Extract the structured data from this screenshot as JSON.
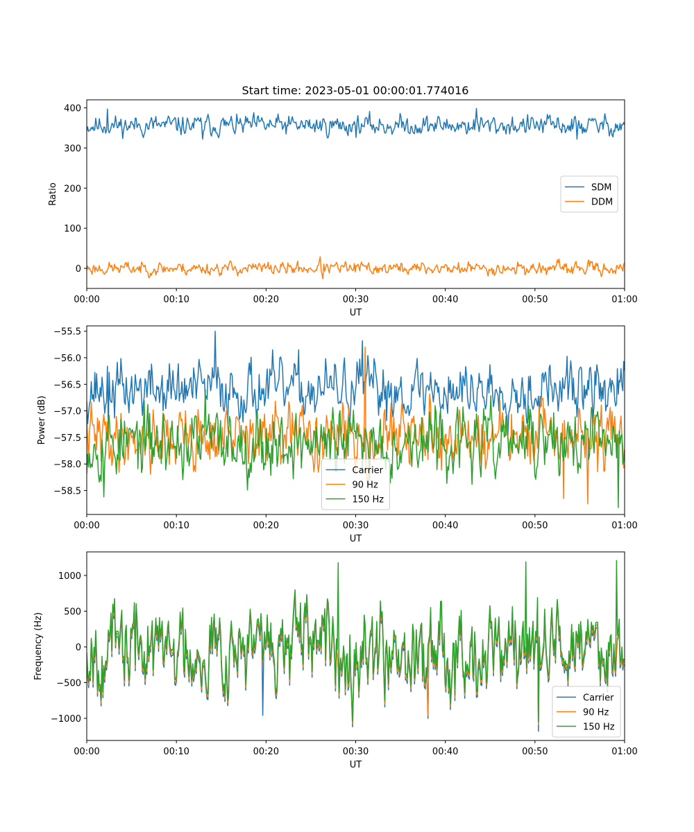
{
  "figure": {
    "title": "Start time: 2023-05-01 00:00:01.774016"
  },
  "chart_data": [
    {
      "type": "line",
      "title": "Start time: 2023-05-01 00:00:01.774016",
      "xlabel": "UT",
      "ylabel": "Ratio",
      "xlim": [
        0,
        60
      ],
      "ylim": [
        -50,
        420
      ],
      "xticks": [
        0,
        10,
        20,
        30,
        40,
        50,
        60
      ],
      "xtick_labels": [
        "00:00",
        "00:10",
        "00:20",
        "00:30",
        "00:40",
        "00:50",
        "01:00"
      ],
      "yticks": [
        0,
        100,
        200,
        300,
        400
      ],
      "ytick_labels": [
        "0",
        "100",
        "200",
        "300",
        "400"
      ],
      "grid": false,
      "legend_position": "center-right",
      "series": [
        {
          "name": "SDM",
          "color": "#1f77b4",
          "noise": {
            "points": 600,
            "mean": 356,
            "amplitude": 14,
            "seed": 11,
            "extremes": [
              [
                2.3,
                397
              ],
              [
                43.5,
                399
              ],
              [
                12.9,
                322
              ],
              [
                54.7,
                322
              ]
            ]
          }
        },
        {
          "name": "DDM",
          "color": "#ff7f0e",
          "noise": {
            "points": 600,
            "mean": 0,
            "amplitude": 9,
            "seed": 23,
            "extremes": [
              [
                26,
                29
              ],
              [
                26.3,
                -26
              ]
            ]
          }
        }
      ]
    },
    {
      "type": "line",
      "title": "",
      "xlabel": "UT",
      "ylabel": "Power (dB)",
      "xlim": [
        0,
        60
      ],
      "ylim": [
        -58.95,
        -55.4
      ],
      "xticks": [
        0,
        10,
        20,
        30,
        40,
        50,
        60
      ],
      "xtick_labels": [
        "00:00",
        "00:10",
        "00:20",
        "00:30",
        "00:40",
        "00:50",
        "01:00"
      ],
      "yticks": [
        -58.5,
        -58.0,
        -57.5,
        -57.0,
        -56.5,
        -56.0,
        -55.5
      ],
      "ytick_labels": [
        "−58.5",
        "−58.0",
        "−57.5",
        "−57.0",
        "−56.5",
        "−56.0",
        "−55.5"
      ],
      "grid": false,
      "legend_position": "lower-center",
      "series": [
        {
          "name": "Carrier",
          "color": "#1f77b4",
          "noise": {
            "points": 600,
            "mean": -56.6,
            "amplitude": 0.3,
            "seed": 37,
            "extremes": [
              [
                14.3,
                -55.5
              ],
              [
                30.8,
                -55.68
              ],
              [
                2.4,
                -57.4
              ]
            ]
          }
        },
        {
          "name": "90 Hz",
          "color": "#ff7f0e",
          "noise": {
            "points": 600,
            "mean": -57.5,
            "amplitude": 0.32,
            "seed": 41,
            "extremes": [
              [
                31.1,
                -55.8
              ],
              [
                53.2,
                -58.65
              ],
              [
                55.9,
                -58.75
              ]
            ]
          }
        },
        {
          "name": "150 Hz",
          "color": "#2ca02c",
          "noise": {
            "points": 600,
            "mean": -57.6,
            "amplitude": 0.35,
            "seed": 53,
            "extremes": [
              [
                1.9,
                -58.62
              ],
              [
                59.3,
                -58.82
              ],
              [
                13.2,
                -56.6
              ]
            ]
          }
        }
      ]
    },
    {
      "type": "line",
      "title": "",
      "xlabel": "UT",
      "ylabel": "Frequency (Hz)",
      "xlim": [
        0,
        60
      ],
      "ylim": [
        -1310,
        1330
      ],
      "xticks": [
        0,
        10,
        20,
        30,
        40,
        50,
        60
      ],
      "xtick_labels": [
        "00:00",
        "00:10",
        "00:20",
        "00:30",
        "00:40",
        "00:50",
        "01:00"
      ],
      "yticks": [
        -1000,
        -500,
        0,
        500,
        1000
      ],
      "ytick_labels": [
        "−1000",
        "−500",
        "0",
        "500",
        "1000"
      ],
      "grid": false,
      "legend_position": "lower-right",
      "series": [
        {
          "name": "Carrier",
          "color": "#1f77b4",
          "noise": {
            "points": 600,
            "mean": -60,
            "amplitude": 330,
            "seed": 67,
            "extremes": [
              [
                50.4,
                -1180
              ],
              [
                38.1,
                -1000
              ],
              [
                19.6,
                -960
              ]
            ]
          }
        },
        {
          "name": "90 Hz",
          "color": "#ff7f0e",
          "noise": {
            "points": 600,
            "mean": -20,
            "amplitude": 330,
            "seed": 67,
            "extremes": [
              [
                50.4,
                -1090
              ],
              [
                38.1,
                -960
              ]
            ]
          }
        },
        {
          "name": "150 Hz",
          "color": "#2ca02c",
          "noise": {
            "points": 600,
            "mean": 20,
            "amplitude": 330,
            "seed": 67,
            "extremes": [
              [
                59.1,
                1210
              ],
              [
                28.0,
                1180
              ],
              [
                49.0,
                1190
              ],
              [
                50.4,
                -1050
              ]
            ]
          }
        }
      ]
    }
  ]
}
